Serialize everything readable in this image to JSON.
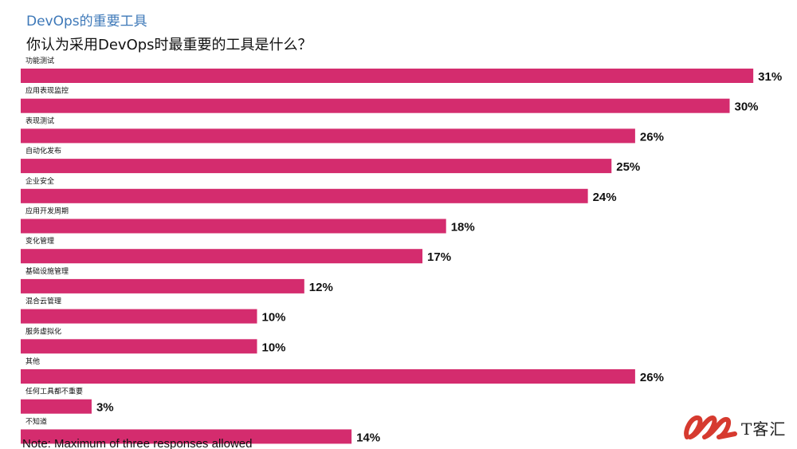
{
  "header": {
    "title": "DevOps的重要工具",
    "question": "你认为采用DevOps时最重要的工具是什么？"
  },
  "chart_data": {
    "type": "bar",
    "orientation": "horizontal",
    "categories": [
      "功能测试",
      "应用表现监控",
      "表现测试",
      "自动化发布",
      "企业安全",
      "应用开发周期",
      "变化管理",
      "基础设施管理",
      "混合云管理",
      "服务虚拟化",
      "其他",
      "任何工具都不重要",
      "不知道"
    ],
    "values": [
      31,
      30,
      26,
      25,
      24,
      18,
      17,
      12,
      10,
      10,
      26,
      3,
      14
    ],
    "value_labels": [
      "31%",
      "30%",
      "26%",
      "25%",
      "24%",
      "18%",
      "17%",
      "12%",
      "10%",
      "10%",
      "26%",
      "3%",
      "14%"
    ],
    "unit": "%",
    "bar_color": "#d42c6e",
    "grid": false,
    "legend": "none"
  },
  "footer": {
    "note": "Note: Maximum of three responses allowed"
  },
  "logo": {
    "text": "T客汇",
    "color": "#d63a2f"
  }
}
